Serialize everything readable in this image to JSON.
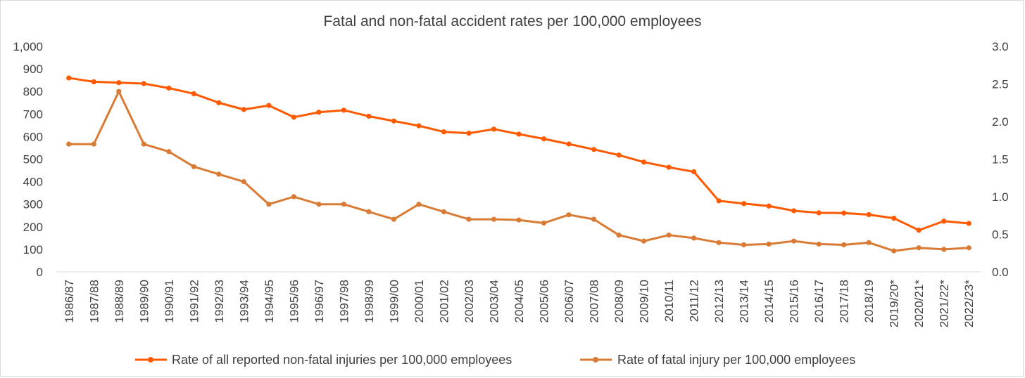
{
  "chart_data": {
    "type": "line",
    "title": "Fatal and non-fatal accident rates per 100,000 employees",
    "categories": [
      "1986/87",
      "1987/88",
      "1988/89",
      "1989/90",
      "1990/91",
      "1991/92",
      "1992/93",
      "1993/94",
      "1994/95",
      "1995/96",
      "1996/97",
      "1997/98",
      "1998/99",
      "1999/00",
      "2000/01",
      "2001/02",
      "2002/03",
      "2003/04",
      "2004/05",
      "2005/06",
      "2006/07",
      "2007/08",
      "2008/09",
      "2009/10",
      "2010/11",
      "2011/12",
      "2012/13",
      "2013/14",
      "2014/15",
      "2015/16",
      "2016/17",
      "2017/18",
      "2018/19",
      "2019/20*",
      "2020/21*",
      "2021/22*",
      "2022/23*"
    ],
    "y_left": {
      "min": 0,
      "max": 1000,
      "ticks": [
        "0",
        "100",
        "200",
        "300",
        "400",
        "500",
        "600",
        "700",
        "800",
        "900",
        "1,000"
      ]
    },
    "y_right": {
      "min": 0,
      "max": 3.0,
      "ticks": [
        "0.0",
        "0.5",
        "1.0",
        "1.5",
        "2.0",
        "2.5",
        "3.0"
      ]
    },
    "series": [
      {
        "name": "Rate of all reported non-fatal injuries per 100,000 employees",
        "axis": "left",
        "color": "#ff5a00",
        "values": [
          860,
          843,
          839,
          835,
          815,
          790,
          750,
          720,
          738,
          686,
          708,
          717,
          690,
          669,
          648,
          621,
          615,
          633,
          611,
          590,
          567,
          543,
          518,
          487,
          464,
          444,
          315,
          303,
          292,
          271,
          262,
          261,
          254,
          238,
          185,
          225,
          215
        ]
      },
      {
        "name": "Rate of fatal injury per 100,000 employees",
        "axis": "right",
        "color": "#d97b35",
        "values": [
          1.7,
          1.7,
          2.4,
          1.7,
          1.6,
          1.4,
          1.3,
          1.2,
          0.9,
          1.0,
          0.9,
          0.9,
          0.8,
          0.7,
          0.9,
          0.8,
          0.7,
          0.7,
          0.69,
          0.65,
          0.76,
          0.7,
          0.49,
          0.41,
          0.49,
          0.45,
          0.39,
          0.36,
          0.37,
          0.41,
          0.37,
          0.36,
          0.39,
          0.28,
          0.32,
          0.3,
          0.32
        ]
      }
    ]
  }
}
